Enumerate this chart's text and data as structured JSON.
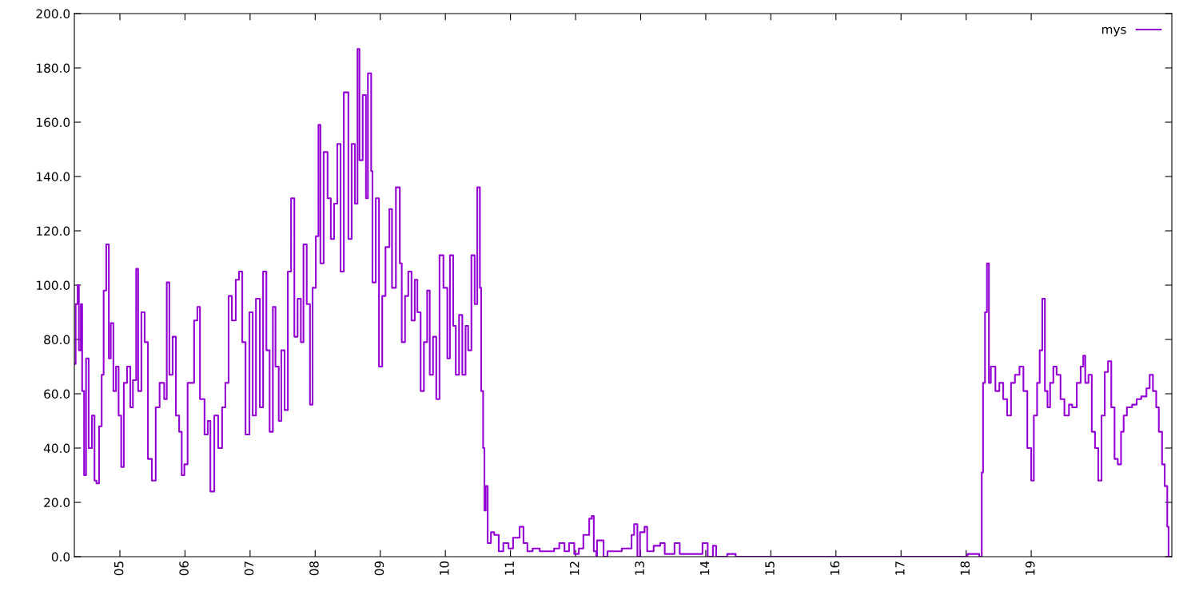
{
  "chart_data": {
    "type": "step",
    "legend": "top right",
    "grid": false,
    "xlim": [
      4.3,
      21.16
    ],
    "ylim": [
      0,
      200
    ],
    "xticks": [
      {
        "value": 5,
        "label": "05"
      },
      {
        "value": 6,
        "label": "06"
      },
      {
        "value": 7,
        "label": "07"
      },
      {
        "value": 8,
        "label": "08"
      },
      {
        "value": 9,
        "label": "09"
      },
      {
        "value": 10,
        "label": "10"
      },
      {
        "value": 11,
        "label": "11"
      },
      {
        "value": 12,
        "label": "12"
      },
      {
        "value": 13,
        "label": "13"
      },
      {
        "value": 14,
        "label": "14"
      },
      {
        "value": 15,
        "label": "15"
      },
      {
        "value": 16,
        "label": "16"
      },
      {
        "value": 17,
        "label": "17"
      },
      {
        "value": 18,
        "label": "18"
      },
      {
        "value": 19,
        "label": "19"
      }
    ],
    "yticks": [
      {
        "value": 0,
        "label": "0.0"
      },
      {
        "value": 20,
        "label": "20.0"
      },
      {
        "value": 40,
        "label": "40.0"
      },
      {
        "value": 60,
        "label": "60.0"
      },
      {
        "value": 80,
        "label": "80.0"
      },
      {
        "value": 100,
        "label": "100.0"
      },
      {
        "value": 120,
        "label": "120.0"
      },
      {
        "value": 140,
        "label": "140.0"
      },
      {
        "value": 160,
        "label": "160.0"
      },
      {
        "value": 180,
        "label": "180.0"
      },
      {
        "value": 200,
        "label": "200.0"
      }
    ],
    "series": [
      {
        "name": "mys",
        "color": "#9400d3",
        "x": [
          4.3,
          4.32,
          4.35,
          4.37,
          4.4,
          4.42,
          4.45,
          4.48,
          4.52,
          4.57,
          4.61,
          4.64,
          4.68,
          4.72,
          4.75,
          4.79,
          4.83,
          4.86,
          4.9,
          4.94,
          4.98,
          5.02,
          5.06,
          5.11,
          5.16,
          5.2,
          5.25,
          5.28,
          5.33,
          5.38,
          5.43,
          5.49,
          5.55,
          5.61,
          5.68,
          5.72,
          5.76,
          5.81,
          5.86,
          5.91,
          5.95,
          5.99,
          6.04,
          6.09,
          6.14,
          6.19,
          6.23,
          6.3,
          6.35,
          6.39,
          6.45,
          6.51,
          6.57,
          6.62,
          6.67,
          6.72,
          6.78,
          6.83,
          6.88,
          6.93,
          6.99,
          7.04,
          7.09,
          7.15,
          7.2,
          7.25,
          7.3,
          7.35,
          7.39,
          7.44,
          7.48,
          7.53,
          7.58,
          7.63,
          7.68,
          7.73,
          7.78,
          7.82,
          7.87,
          7.92,
          7.96,
          8.01,
          8.05,
          8.08,
          8.13,
          8.19,
          8.24,
          8.29,
          8.34,
          8.39,
          8.44,
          8.51,
          8.56,
          8.61,
          8.65,
          8.68,
          8.73,
          8.78,
          8.81,
          8.86,
          8.88,
          8.93,
          8.98,
          9.03,
          9.08,
          9.14,
          9.18,
          9.24,
          9.3,
          9.33,
          9.38,
          9.43,
          9.48,
          9.53,
          9.57,
          9.62,
          9.67,
          9.72,
          9.76,
          9.81,
          9.86,
          9.91,
          9.97,
          10.03,
          10.07,
          10.12,
          10.16,
          10.21,
          10.26,
          10.31,
          10.35,
          10.4,
          10.45,
          10.49,
          10.53,
          10.55,
          10.58,
          10.6,
          10.62,
          10.65,
          10.7,
          10.75,
          10.82,
          10.89,
          10.97,
          11.04,
          11.14,
          11.2,
          11.26,
          11.34,
          11.45,
          11.57,
          11.67,
          11.75,
          11.83,
          11.9,
          11.98,
          12.05,
          12.12,
          12.21,
          12.25,
          12.28,
          12.32,
          12.33,
          12.4,
          12.43,
          12.49,
          12.61,
          12.71,
          12.79,
          12.86,
          12.9,
          12.95,
          12.99,
          13.06,
          13.1,
          13.2,
          13.3,
          13.37,
          13.52,
          13.6,
          13.72,
          13.87,
          13.95,
          14.03,
          14.11,
          14.16,
          14.33,
          14.46,
          14.95,
          15.93,
          16.67,
          18.02,
          18.2,
          18.24,
          18.26,
          18.29,
          18.32,
          18.35,
          18.38,
          18.45,
          18.51,
          18.57,
          18.63,
          18.69,
          18.75,
          18.82,
          18.88,
          18.94,
          19.0,
          19.04,
          19.09,
          19.13,
          19.17,
          19.21,
          19.25,
          19.29,
          19.34,
          19.39,
          19.45,
          19.51,
          19.58,
          19.63,
          19.7,
          19.76,
          19.8,
          19.83,
          19.88,
          19.93,
          19.98,
          20.03,
          20.08,
          20.13,
          20.18,
          20.23,
          20.28,
          20.33,
          20.38,
          20.42,
          20.47,
          20.55,
          20.62,
          20.69,
          20.77,
          20.82,
          20.87,
          20.92,
          20.96,
          21.01,
          21.05,
          21.09,
          21.11,
          21.16
        ],
        "values": [
          71,
          93,
          100,
          76,
          93,
          61,
          30,
          73,
          40,
          52,
          28,
          27,
          48,
          67,
          98,
          115,
          73,
          86,
          61,
          70,
          52,
          33,
          64,
          70,
          55,
          65,
          106,
          61,
          90,
          79,
          36,
          28,
          55,
          64,
          58,
          101,
          67,
          81,
          52,
          46,
          30,
          34,
          64,
          64,
          87,
          92,
          58,
          45,
          50,
          24,
          52,
          40,
          55,
          64,
          96,
          87,
          102,
          105,
          79,
          45,
          90,
          52,
          95,
          55,
          105,
          76,
          46,
          92,
          70,
          50,
          76,
          54,
          105,
          132,
          81,
          95,
          79,
          115,
          93,
          56,
          99,
          118,
          159,
          108,
          149,
          132,
          117,
          130,
          152,
          105,
          171,
          117,
          152,
          130,
          187,
          146,
          170,
          132,
          178,
          142,
          101,
          132,
          70,
          96,
          114,
          128,
          99,
          136,
          108,
          79,
          96,
          105,
          87,
          102,
          90,
          61,
          79,
          98,
          67,
          81,
          58,
          111,
          99,
          73,
          111,
          85,
          67,
          89,
          67,
          85,
          76,
          111,
          93,
          136,
          99,
          61,
          40,
          17,
          26,
          5,
          9,
          8,
          2,
          5,
          3,
          7,
          11,
          5,
          2,
          3,
          2,
          2,
          3,
          5,
          2,
          5,
          1,
          3,
          8,
          14,
          15,
          2,
          0,
          6,
          6,
          0,
          2,
          2,
          3,
          3,
          8,
          12,
          0,
          9,
          11,
          2,
          4,
          5,
          1,
          5,
          1,
          1,
          1,
          5,
          0,
          4,
          0,
          1,
          0,
          0,
          0,
          0,
          1,
          0,
          31,
          64,
          90,
          108,
          64,
          70,
          61,
          64,
          58,
          52,
          64,
          67,
          70,
          61,
          40,
          28,
          52,
          64,
          76,
          95,
          61,
          55,
          64,
          70,
          67,
          58,
          52,
          56,
          55,
          64,
          70,
          74,
          64,
          67,
          46,
          40,
          28,
          52,
          68,
          72,
          55,
          36,
          34,
          46,
          52,
          55,
          56,
          58,
          59,
          62,
          67,
          61,
          55,
          46,
          34,
          26,
          11,
          0,
          0
        ]
      }
    ]
  }
}
